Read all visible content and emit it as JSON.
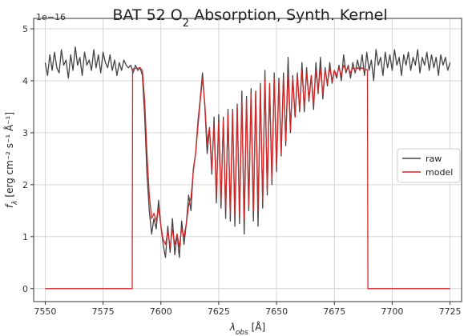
{
  "chart_data": {
    "type": "line",
    "title": {
      "prefix": "BAT 52 O",
      "subscript": "2",
      "suffix": " Absorption, Synth. Kernel"
    },
    "xlabel": {
      "base": "λ",
      "sub": "obs",
      "unit": " [Å]"
    },
    "ylabel": {
      "base": "f",
      "sub": "λ",
      "unit": " [erg cm⁻² s⁻¹ Å⁻¹]"
    },
    "y_offset_text": "1e−16",
    "xlim": [
      7545,
      7730
    ],
    "ylim": [
      -0.25,
      5.2
    ],
    "xticks": [
      7550,
      7575,
      7600,
      7625,
      7650,
      7675,
      7700,
      7725
    ],
    "yticks": [
      0,
      1,
      2,
      3,
      4,
      5
    ],
    "grid": true,
    "legend_position": "right",
    "series": [
      {
        "name": "raw",
        "color": "#444444",
        "points": [
          [
            7550,
            4.35
          ],
          [
            7551,
            4.1
          ],
          [
            7552,
            4.5
          ],
          [
            7553,
            4.2
          ],
          [
            7554,
            4.55
          ],
          [
            7555,
            4.25
          ],
          [
            7556,
            4.15
          ],
          [
            7557,
            4.6
          ],
          [
            7558,
            4.3
          ],
          [
            7559,
            4.4
          ],
          [
            7560,
            4.05
          ],
          [
            7561,
            4.5
          ],
          [
            7562,
            4.2
          ],
          [
            7563,
            4.65
          ],
          [
            7564,
            4.3
          ],
          [
            7565,
            4.45
          ],
          [
            7566,
            4.1
          ],
          [
            7567,
            4.55
          ],
          [
            7568,
            4.3
          ],
          [
            7569,
            4.4
          ],
          [
            7570,
            4.2
          ],
          [
            7571,
            4.6
          ],
          [
            7572,
            4.25
          ],
          [
            7573,
            4.5
          ],
          [
            7574,
            4.15
          ],
          [
            7575,
            4.55
          ],
          [
            7576,
            4.35
          ],
          [
            7577,
            4.25
          ],
          [
            7578,
            4.5
          ],
          [
            7579,
            4.2
          ],
          [
            7580,
            4.4
          ],
          [
            7581,
            4.1
          ],
          [
            7582,
            4.35
          ],
          [
            7583,
            4.2
          ],
          [
            7584,
            4.4
          ],
          [
            7585,
            4.3
          ],
          [
            7586,
            4.25
          ],
          [
            7587,
            4.3
          ],
          [
            7588,
            4.15
          ],
          [
            7589,
            4.3
          ],
          [
            7590,
            4.2
          ],
          [
            7591,
            4.25
          ],
          [
            7592,
            4.1
          ],
          [
            7593,
            3.3
          ],
          [
            7594,
            2.2
          ],
          [
            7595,
            1.5
          ],
          [
            7596,
            1.05
          ],
          [
            7597,
            1.35
          ],
          [
            7598,
            1.15
          ],
          [
            7599,
            1.7
          ],
          [
            7600,
            1.2
          ],
          [
            7601,
            0.85
          ],
          [
            7602,
            0.6
          ],
          [
            7603,
            1.2
          ],
          [
            7604,
            0.7
          ],
          [
            7605,
            1.35
          ],
          [
            7606,
            0.65
          ],
          [
            7607,
            1.05
          ],
          [
            7608,
            0.6
          ],
          [
            7609,
            1.3
          ],
          [
            7610,
            0.85
          ],
          [
            7611,
            1.25
          ],
          [
            7612,
            1.8
          ],
          [
            7613,
            1.5
          ],
          [
            7614,
            2.3
          ],
          [
            7615,
            2.6
          ],
          [
            7616,
            3.2
          ],
          [
            7617,
            3.65
          ],
          [
            7618,
            4.15
          ],
          [
            7619,
            3.5
          ],
          [
            7620,
            2.6
          ],
          [
            7621,
            3.1
          ],
          [
            7622,
            2.2
          ],
          [
            7623,
            3.3
          ],
          [
            7624,
            1.65
          ],
          [
            7625,
            3.35
          ],
          [
            7626,
            1.55
          ],
          [
            7627,
            3.3
          ],
          [
            7628,
            1.35
          ],
          [
            7629,
            3.45
          ],
          [
            7630,
            1.3
          ],
          [
            7631,
            3.45
          ],
          [
            7632,
            1.2
          ],
          [
            7633,
            3.55
          ],
          [
            7634,
            1.25
          ],
          [
            7635,
            3.8
          ],
          [
            7636,
            1.05
          ],
          [
            7637,
            3.7
          ],
          [
            7638,
            1.5
          ],
          [
            7639,
            3.85
          ],
          [
            7640,
            1.3
          ],
          [
            7641,
            3.8
          ],
          [
            7642,
            1.2
          ],
          [
            7643,
            3.95
          ],
          [
            7644,
            1.55
          ],
          [
            7645,
            4.2
          ],
          [
            7646,
            1.8
          ],
          [
            7647,
            3.9
          ],
          [
            7648,
            2.0
          ],
          [
            7649,
            4.15
          ],
          [
            7650,
            2.25
          ],
          [
            7651,
            4.05
          ],
          [
            7652,
            2.55
          ],
          [
            7653,
            4.15
          ],
          [
            7654,
            2.75
          ],
          [
            7655,
            4.45
          ],
          [
            7656,
            3.0
          ],
          [
            7657,
            4.1
          ],
          [
            7658,
            3.3
          ],
          [
            7659,
            4.15
          ],
          [
            7660,
            3.4
          ],
          [
            7661,
            4.35
          ],
          [
            7662,
            3.4
          ],
          [
            7663,
            4.25
          ],
          [
            7664,
            3.6
          ],
          [
            7665,
            4.1
          ],
          [
            7666,
            3.45
          ],
          [
            7667,
            4.35
          ],
          [
            7668,
            3.75
          ],
          [
            7669,
            4.45
          ],
          [
            7670,
            3.65
          ],
          [
            7671,
            4.25
          ],
          [
            7672,
            3.9
          ],
          [
            7673,
            4.35
          ],
          [
            7674,
            3.95
          ],
          [
            7675,
            4.2
          ],
          [
            7676,
            4.05
          ],
          [
            7677,
            4.3
          ],
          [
            7678,
            4.0
          ],
          [
            7679,
            4.5
          ],
          [
            7680,
            4.15
          ],
          [
            7681,
            4.3
          ],
          [
            7682,
            4.05
          ],
          [
            7683,
            4.35
          ],
          [
            7684,
            4.15
          ],
          [
            7685,
            4.4
          ],
          [
            7686,
            4.2
          ],
          [
            7687,
            4.5
          ],
          [
            7688,
            4.1
          ],
          [
            7689,
            4.55
          ],
          [
            7690,
            4.2
          ],
          [
            7691,
            4.4
          ],
          [
            7692,
            4.0
          ],
          [
            7693,
            4.6
          ],
          [
            7694,
            4.3
          ],
          [
            7695,
            4.45
          ],
          [
            7696,
            4.1
          ],
          [
            7697,
            4.55
          ],
          [
            7698,
            4.25
          ],
          [
            7699,
            4.5
          ],
          [
            7700,
            4.2
          ],
          [
            7701,
            4.6
          ],
          [
            7702,
            4.3
          ],
          [
            7703,
            4.45
          ],
          [
            7704,
            4.1
          ],
          [
            7705,
            4.5
          ],
          [
            7706,
            4.3
          ],
          [
            7707,
            4.55
          ],
          [
            7708,
            4.2
          ],
          [
            7709,
            4.45
          ],
          [
            7710,
            4.3
          ],
          [
            7711,
            4.6
          ],
          [
            7712,
            4.15
          ],
          [
            7713,
            4.45
          ],
          [
            7714,
            4.3
          ],
          [
            7715,
            4.55
          ],
          [
            7716,
            4.2
          ],
          [
            7717,
            4.5
          ],
          [
            7718,
            4.25
          ],
          [
            7719,
            4.45
          ],
          [
            7720,
            4.1
          ],
          [
            7721,
            4.5
          ],
          [
            7722,
            4.3
          ],
          [
            7723,
            4.45
          ],
          [
            7724,
            4.2
          ],
          [
            7725,
            4.35
          ]
        ]
      },
      {
        "name": "model",
        "color": "#d62728",
        "points": [
          [
            7550,
            0
          ],
          [
            7587.6,
            0
          ],
          [
            7587.8,
            4.2
          ],
          [
            7588,
            4.23
          ],
          [
            7591,
            4.25
          ],
          [
            7592,
            4.2
          ],
          [
            7593,
            3.6
          ],
          [
            7594,
            2.6
          ],
          [
            7595,
            1.8
          ],
          [
            7596,
            1.35
          ],
          [
            7597,
            1.45
          ],
          [
            7598,
            1.3
          ],
          [
            7599,
            1.55
          ],
          [
            7600,
            1.2
          ],
          [
            7601,
            0.95
          ],
          [
            7602,
            0.85
          ],
          [
            7603,
            1.1
          ],
          [
            7604,
            0.8
          ],
          [
            7605,
            1.15
          ],
          [
            7606,
            0.85
          ],
          [
            7607,
            1.05
          ],
          [
            7608,
            0.8
          ],
          [
            7609,
            1.15
          ],
          [
            7610,
            1.0
          ],
          [
            7611,
            1.25
          ],
          [
            7612,
            1.6
          ],
          [
            7613,
            1.75
          ],
          [
            7614,
            2.25
          ],
          [
            7615,
            2.6
          ],
          [
            7616,
            3.1
          ],
          [
            7617,
            3.6
          ],
          [
            7618,
            4.05
          ],
          [
            7619,
            3.55
          ],
          [
            7620,
            2.8
          ],
          [
            7621,
            3.1
          ],
          [
            7622,
            2.3
          ],
          [
            7623,
            3.15
          ],
          [
            7624,
            1.8
          ],
          [
            7625,
            3.2
          ],
          [
            7626,
            1.7
          ],
          [
            7627,
            3.25
          ],
          [
            7628,
            1.55
          ],
          [
            7629,
            3.35
          ],
          [
            7630,
            1.45
          ],
          [
            7631,
            3.4
          ],
          [
            7632,
            1.4
          ],
          [
            7633,
            3.5
          ],
          [
            7634,
            1.45
          ],
          [
            7635,
            3.6
          ],
          [
            7636,
            1.35
          ],
          [
            7637,
            3.65
          ],
          [
            7638,
            1.6
          ],
          [
            7639,
            3.75
          ],
          [
            7640,
            1.5
          ],
          [
            7641,
            3.8
          ],
          [
            7642,
            1.5
          ],
          [
            7643,
            3.85
          ],
          [
            7644,
            1.7
          ],
          [
            7645,
            4.0
          ],
          [
            7646,
            1.9
          ],
          [
            7647,
            3.95
          ],
          [
            7648,
            2.1
          ],
          [
            7649,
            4.05
          ],
          [
            7650,
            2.35
          ],
          [
            7651,
            4.0
          ],
          [
            7652,
            2.6
          ],
          [
            7653,
            4.05
          ],
          [
            7654,
            2.85
          ],
          [
            7655,
            4.15
          ],
          [
            7656,
            3.05
          ],
          [
            7657,
            4.05
          ],
          [
            7658,
            3.3
          ],
          [
            7659,
            4.1
          ],
          [
            7660,
            3.45
          ],
          [
            7661,
            4.2
          ],
          [
            7662,
            3.5
          ],
          [
            7663,
            4.15
          ],
          [
            7664,
            3.65
          ],
          [
            7665,
            4.1
          ],
          [
            7666,
            3.55
          ],
          [
            7667,
            4.2
          ],
          [
            7668,
            3.8
          ],
          [
            7669,
            4.25
          ],
          [
            7670,
            3.75
          ],
          [
            7671,
            4.2
          ],
          [
            7672,
            3.95
          ],
          [
            7673,
            4.25
          ],
          [
            7674,
            4.0
          ],
          [
            7675,
            4.2
          ],
          [
            7676,
            4.1
          ],
          [
            7677,
            4.25
          ],
          [
            7678,
            4.1
          ],
          [
            7679,
            4.3
          ],
          [
            7680,
            4.2
          ],
          [
            7681,
            4.25
          ],
          [
            7682,
            4.15
          ],
          [
            7683,
            4.25
          ],
          [
            7684,
            4.2
          ],
          [
            7685,
            4.25
          ],
          [
            7686,
            4.22
          ],
          [
            7687,
            4.25
          ],
          [
            7688,
            4.2
          ],
          [
            7689,
            4.22
          ],
          [
            7689.3,
            4.2
          ],
          [
            7689.5,
            0
          ],
          [
            7725,
            0
          ]
        ]
      }
    ]
  }
}
